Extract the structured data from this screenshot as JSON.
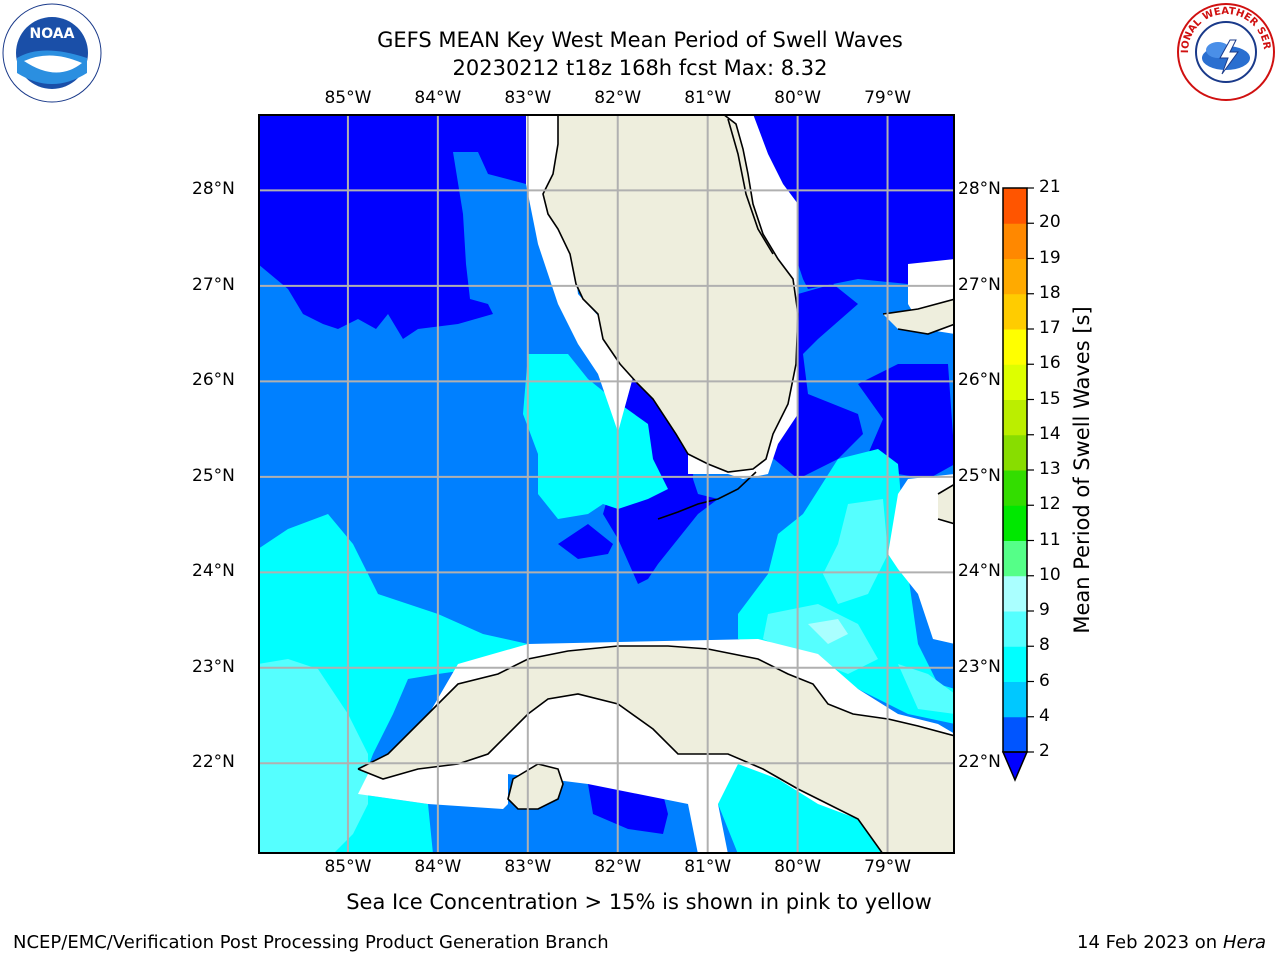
{
  "header": {
    "title_line1": "GEFS MEAN Key West Mean Period of Swell Waves",
    "title_line2": "20230212 t18z 168h fcst   Max: 8.32"
  },
  "logos": {
    "left": {
      "icon": "noaa-logo",
      "text": "NOAA"
    },
    "right": {
      "icon": "nws-logo",
      "text": "NATIONAL WEATHER SERVICE"
    }
  },
  "map": {
    "lon_labels": [
      "85°W",
      "84°W",
      "83°W",
      "82°W",
      "81°W",
      "80°W",
      "79°W"
    ],
    "lat_labels": [
      "28°N",
      "27°N",
      "26°N",
      "25°N",
      "24°N",
      "23°N",
      "22°N"
    ],
    "lon_range": [
      -86.0,
      -78.25
    ],
    "lat_range": [
      21.05,
      28.8
    ]
  },
  "colorbar": {
    "label": "Mean Period of Swell Waves [s]",
    "ticks": [
      "2",
      "4",
      "6",
      "8",
      "9",
      "10",
      "11",
      "12",
      "13",
      "14",
      "15",
      "16",
      "17",
      "18",
      "19",
      "20",
      "21"
    ],
    "colors": [
      "#0055ff",
      "#00c8ff",
      "#00ffff",
      "#55ffff",
      "#aaffff",
      "#55ff88",
      "#00e800",
      "#33dd00",
      "#88dd00",
      "#bbee00",
      "#ddff00",
      "#ffff00",
      "#ffcc00",
      "#ffaa00",
      "#ff8800",
      "#ff5500",
      "#ff2200",
      "#ff0000"
    ],
    "under_color": "#0000ff"
  },
  "palette": {
    "land": "#eeeedd",
    "lt2": "#0000ff",
    "band2_4": "#0080ff",
    "band4_6": "#00ffff",
    "band6_8": "#55ffff",
    "band8_9": "#aaffff"
  },
  "notes": {
    "sea_ice": "Sea Ice Concentration > 15% is shown in pink to yellow"
  },
  "footer": {
    "left": "NCEP/EMC/Verification Post Processing Product Generation Branch",
    "date": "14 Feb 2023 on",
    "machine": "Hera"
  }
}
